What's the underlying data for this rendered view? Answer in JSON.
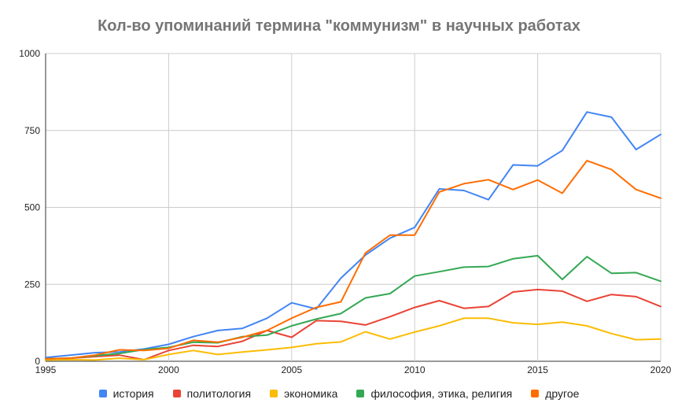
{
  "chart_data": {
    "type": "line",
    "title": "Кол-во упоминаний термина \"коммунизм\" в научных работах",
    "xlabel": "",
    "ylabel": "",
    "xlim": [
      1995,
      2020
    ],
    "ylim": [
      0,
      1000
    ],
    "x_ticks": [
      "1995",
      "2000",
      "2005",
      "2010",
      "2015",
      "2020"
    ],
    "y_ticks": [
      "0",
      "250",
      "500",
      "750",
      "1000"
    ],
    "grid": true,
    "legend_position": "bottom",
    "x": [
      1995,
      1996,
      1997,
      1998,
      1999,
      2000,
      2001,
      2002,
      2003,
      2004,
      2005,
      2006,
      2007,
      2008,
      2009,
      2010,
      2011,
      2012,
      2013,
      2014,
      2015,
      2016,
      2017,
      2018,
      2019,
      2020
    ],
    "series": [
      {
        "name": "история",
        "color": "#4285f4",
        "values": [
          12,
          20,
          28,
          30,
          40,
          55,
          80,
          100,
          107,
          140,
          190,
          170,
          270,
          345,
          400,
          435,
          560,
          555,
          525,
          638,
          635,
          685,
          810,
          793,
          688,
          737
        ]
      },
      {
        "name": "политология",
        "color": "#ea4335",
        "values": [
          8,
          10,
          15,
          20,
          5,
          35,
          52,
          48,
          65,
          100,
          78,
          132,
          130,
          118,
          145,
          175,
          197,
          172,
          178,
          225,
          233,
          228,
          195,
          217,
          210,
          178
        ]
      },
      {
        "name": "экономика",
        "color": "#fbbc04",
        "values": [
          4,
          5,
          4,
          10,
          5,
          22,
          35,
          22,
          30,
          37,
          45,
          57,
          63,
          96,
          72,
          95,
          115,
          140,
          140,
          125,
          120,
          127,
          115,
          90,
          70,
          72
        ]
      },
      {
        "name": "философия, этика, религия",
        "color": "#34a853",
        "values": [
          8,
          10,
          18,
          25,
          38,
          45,
          62,
          60,
          80,
          85,
          115,
          137,
          155,
          206,
          220,
          277,
          291,
          306,
          308,
          333,
          343,
          266,
          340,
          286,
          288,
          260
        ]
      },
      {
        "name": "другое",
        "color": "#ff6d01",
        "values": [
          8,
          10,
          20,
          37,
          35,
          42,
          68,
          62,
          78,
          100,
          140,
          175,
          193,
          352,
          410,
          410,
          550,
          577,
          590,
          558,
          589,
          546,
          652,
          623,
          558,
          530
        ]
      }
    ]
  }
}
